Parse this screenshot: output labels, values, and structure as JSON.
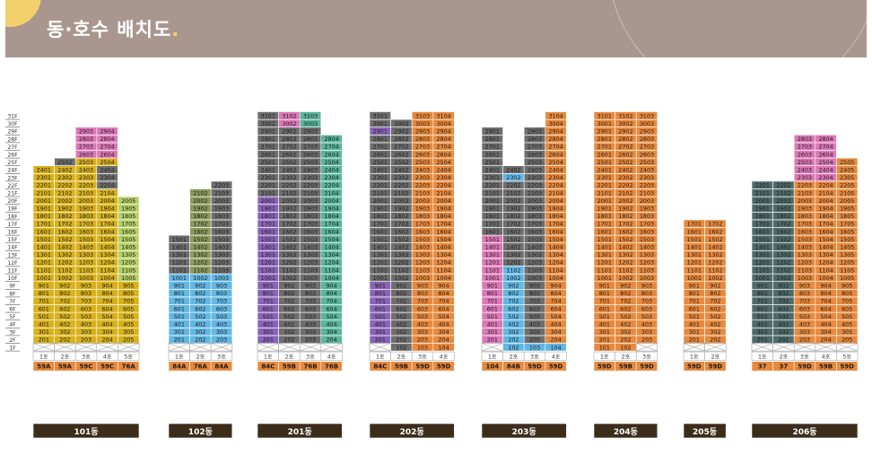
{
  "header": {
    "title": "동·호수 배치도"
  },
  "colors": {
    "orange": "#e8893d",
    "yellow": "#d8b11b",
    "pink": "#dd78b8",
    "green": "#5ab59b",
    "lime": "#b5cf64",
    "blue": "#62b7e4",
    "olive": "#8b9a5b",
    "gray": "#6e6e6e",
    "darkgray": "#565656",
    "purple": "#8a64b8",
    "teal": "#4f6b69",
    "label": "#3c2d1a"
  },
  "floor_labels": [
    "31F",
    "30F",
    "29F",
    "28F",
    "27F",
    "26F",
    "25F",
    "24F",
    "23F",
    "22F",
    "21F",
    "20F",
    "19F",
    "18F",
    "17F",
    "16F",
    "15F",
    "14F",
    "13F",
    "12F",
    "11F",
    "10F",
    "9F",
    "8F",
    "7F",
    "6F",
    "5F",
    "4F",
    "3F",
    "2F",
    "1F"
  ],
  "buildings": [
    {
      "name": "101동",
      "lines": [
        {
          "line": "1호",
          "type": "59A",
          "floors": [
            2,
            24
          ]
        },
        {
          "line": "2호",
          "type": "59A",
          "floors": [
            2,
            25
          ]
        },
        {
          "line": "3호",
          "type": "59C",
          "floors": [
            2,
            29
          ]
        },
        {
          "line": "4호",
          "type": "59C",
          "floors": [
            2,
            29
          ]
        },
        {
          "line": "5호",
          "type": "76A",
          "floors": [
            2,
            20
          ]
        }
      ]
    },
    {
      "name": "102동",
      "lines": [
        {
          "line": "1호",
          "type": "84A",
          "floors": [
            2,
            15
          ]
        },
        {
          "line": "2호",
          "type": "76A",
          "floors": [
            2,
            21
          ]
        },
        {
          "line": "3호",
          "type": "84A",
          "floors": [
            2,
            22
          ]
        }
      ]
    },
    {
      "name": "201동",
      "lines": [
        {
          "line": "1호",
          "type": "84C",
          "floors": [
            2,
            31
          ]
        },
        {
          "line": "2호",
          "type": "59B",
          "floors": [
            2,
            31
          ]
        },
        {
          "line": "3호",
          "type": "76B",
          "floors": [
            2,
            31
          ]
        },
        {
          "line": "4호",
          "type": "76B",
          "floors": [
            2,
            28
          ]
        }
      ]
    },
    {
      "name": "202동",
      "lines": [
        {
          "line": "1호",
          "type": "84C",
          "floors": [
            2,
            31
          ]
        },
        {
          "line": "2호",
          "type": "59B",
          "floors": [
            1,
            30
          ]
        },
        {
          "line": "3호",
          "type": "59D",
          "floors": [
            1,
            31
          ]
        },
        {
          "line": "4호",
          "type": "59D",
          "floors": [
            1,
            31
          ]
        }
      ]
    },
    {
      "name": "203동",
      "lines": [
        {
          "line": "1호",
          "type": "104",
          "floors": [
            2,
            29
          ]
        },
        {
          "line": "2호",
          "type": "84B",
          "floors": [
            1,
            24
          ]
        },
        {
          "line": "3호",
          "type": "59D",
          "floors": [
            1,
            29
          ]
        },
        {
          "line": "4호",
          "type": "59D",
          "floors": [
            1,
            31
          ]
        }
      ]
    },
    {
      "name": "204동",
      "lines": [
        {
          "line": "1호",
          "type": "59D",
          "floors": [
            1,
            31
          ]
        },
        {
          "line": "2호",
          "type": "59B",
          "floors": [
            1,
            31
          ]
        },
        {
          "line": "3호",
          "type": "59D",
          "floors": [
            2,
            31
          ]
        }
      ]
    },
    {
      "name": "205동",
      "lines": [
        {
          "line": "1호",
          "type": "59D",
          "floors": [
            2,
            17
          ]
        },
        {
          "line": "2호",
          "type": "59D",
          "floors": [
            2,
            17
          ]
        }
      ]
    },
    {
      "name": "206동",
      "lines": [
        {
          "line": "1호",
          "type": "37",
          "floors": [
            2,
            22
          ]
        },
        {
          "line": "2호",
          "type": "37",
          "floors": [
            2,
            22
          ]
        },
        {
          "line": "3호",
          "type": "59D",
          "floors": [
            2,
            28
          ]
        },
        {
          "line": "4호",
          "type": "59B",
          "floors": [
            2,
            28
          ]
        },
        {
          "line": "5호",
          "type": "59D",
          "floors": [
            2,
            25
          ]
        }
      ]
    }
  ]
}
